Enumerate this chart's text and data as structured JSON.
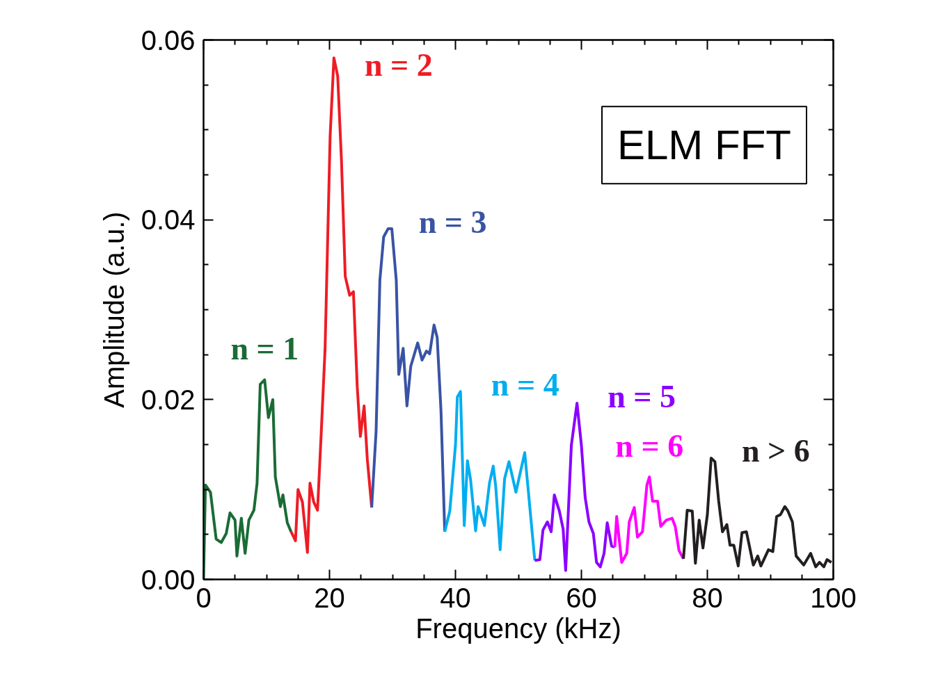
{
  "chart_data": {
    "type": "line",
    "title": "ELM FFT",
    "xlabel": "Frequency (kHz)",
    "ylabel": "Amplitude (a.u.)",
    "xlim": [
      0,
      100
    ],
    "ylim": [
      0,
      0.06
    ],
    "xticks": [
      0,
      20,
      40,
      60,
      80,
      100
    ],
    "yticks": [
      {
        "value": 0,
        "label": "0.00"
      },
      {
        "value": 0.02,
        "label": "0.02"
      },
      {
        "value": 0.04,
        "label": "0.04"
      },
      {
        "value": 0.06,
        "label": "0.06"
      }
    ],
    "grid": false,
    "marker": "none",
    "line_style": "solid",
    "series": [
      {
        "name": "n = 1",
        "color": "#1a6b35",
        "x": [
          0,
          0.3,
          1.1,
          2.0,
          2.8,
          3.6,
          4.2,
          5.0,
          5.3,
          6.0,
          6.6,
          7.2,
          8.0,
          8.5,
          9.0,
          9.7,
          10.3,
          11.0,
          11.4,
          12.2,
          12.6,
          13.3,
          13.9
        ],
        "values": [
          0,
          0.0105,
          0.0097,
          0.0045,
          0.0041,
          0.0051,
          0.0074,
          0.0066,
          0.0026,
          0.0068,
          0.0029,
          0.0066,
          0.0077,
          0.0107,
          0.0217,
          0.0222,
          0.018,
          0.02,
          0.0114,
          0.0081,
          0.0094,
          0.0063,
          0.0053
        ]
      },
      {
        "name": "n = 2",
        "color": "#ee1c25",
        "x": [
          13.9,
          14.6,
          15.0,
          15.7,
          16.5,
          16.9,
          17.5,
          18.1,
          18.7,
          19.3,
          20.1,
          20.7,
          21.3,
          21.9,
          22.5,
          23.2,
          23.8,
          24.4,
          24.9,
          25.5,
          26.0,
          26.7
        ],
        "values": [
          0.0053,
          0.0043,
          0.01,
          0.0086,
          0.003,
          0.0107,
          0.0086,
          0.0077,
          0.0165,
          0.0257,
          0.0493,
          0.058,
          0.056,
          0.0466,
          0.0337,
          0.0316,
          0.032,
          0.0215,
          0.0159,
          0.0193,
          0.0134,
          0.008
        ]
      },
      {
        "name": "n = 3",
        "color": "#3953a4",
        "x": [
          26.7,
          27.4,
          28.0,
          28.6,
          29.3,
          29.9,
          30.6,
          31.0,
          31.7,
          32.3,
          32.9,
          34.0,
          34.7,
          35.4,
          35.9,
          36.6,
          37.1,
          37.7,
          38.3
        ],
        "values": [
          0.008,
          0.0165,
          0.0333,
          0.0381,
          0.039,
          0.039,
          0.0333,
          0.0228,
          0.0257,
          0.0193,
          0.0237,
          0.0263,
          0.0244,
          0.0254,
          0.0251,
          0.0283,
          0.0269,
          0.0188,
          0.0053
        ]
      },
      {
        "name": "n = 4",
        "color": "#00aeef",
        "x": [
          38.3,
          39.1,
          40.0,
          40.3,
          40.8,
          41.4,
          41.9,
          42.4,
          43.2,
          43.6,
          44.6,
          45.4,
          46.0,
          46.4,
          47.1,
          47.8,
          48.5,
          49.6,
          51.0,
          52.6
        ],
        "values": [
          0.0053,
          0.0076,
          0.0149,
          0.0203,
          0.0209,
          0.006,
          0.0132,
          0.0111,
          0.0054,
          0.0081,
          0.006,
          0.0107,
          0.0126,
          0.0103,
          0.0033,
          0.0112,
          0.0131,
          0.0097,
          0.0141,
          0.0021
        ]
      },
      {
        "name": "n = 5",
        "color": "#8b00ff",
        "x": [
          52.6,
          53.4,
          53.9,
          54.6,
          55.2,
          55.7,
          56.5,
          57.1,
          57.5,
          58.4,
          59.3,
          60.0,
          60.6,
          61.2,
          61.9,
          62.4,
          63.0,
          63.6,
          64.1,
          64.8,
          65.3
        ],
        "values": [
          0.0021,
          0.0022,
          0.0055,
          0.0064,
          0.0053,
          0.0094,
          0.0076,
          0.0056,
          0.001,
          0.0149,
          0.0196,
          0.0149,
          0.0091,
          0.0064,
          0.0051,
          0.0019,
          0.0014,
          0.0029,
          0.0063,
          0.0037,
          0.0036
        ]
      },
      {
        "name": "n = 6",
        "color": "#ff00ff",
        "x": [
          65.3,
          65.6,
          66.4,
          67.2,
          67.6,
          68.4,
          68.9,
          69.7,
          70.4,
          70.8,
          71.3,
          72.1,
          72.6,
          73.5,
          74.4,
          74.9,
          75.5,
          76.2
        ],
        "values": [
          0.0036,
          0.007,
          0.0019,
          0.0029,
          0.0064,
          0.008,
          0.0047,
          0.0053,
          0.0105,
          0.0114,
          0.0087,
          0.0087,
          0.0059,
          0.0066,
          0.0068,
          0.0059,
          0.0032,
          0.0023
        ]
      },
      {
        "name": "n > 6",
        "color": "#231f20",
        "x": [
          76.2,
          76.8,
          77.6,
          78.1,
          78.7,
          79.3,
          80.0,
          80.6,
          81.2,
          81.8,
          82.4,
          83.1,
          83.6,
          84.2,
          84.9,
          85.5,
          86.2,
          87.3,
          88.0,
          88.5,
          89.7,
          90.4,
          91.0,
          91.6,
          92.3,
          92.8,
          93.5,
          94.1,
          95.3,
          96.4,
          97.2,
          97.8,
          98.5,
          99.0,
          99.7
        ],
        "values": [
          0.0023,
          0.0077,
          0.0076,
          0.0018,
          0.0066,
          0.0035,
          0.0072,
          0.0135,
          0.0131,
          0.0087,
          0.0053,
          0.0061,
          0.0038,
          0.0038,
          0.0015,
          0.0052,
          0.0053,
          0.0016,
          0.0026,
          0.0015,
          0.0033,
          0.0031,
          0.007,
          0.0072,
          0.0081,
          0.0076,
          0.0064,
          0.0026,
          0.0016,
          0.0029,
          0.0014,
          0.0019,
          0.0014,
          0.0022,
          0.0019
        ]
      }
    ]
  }
}
